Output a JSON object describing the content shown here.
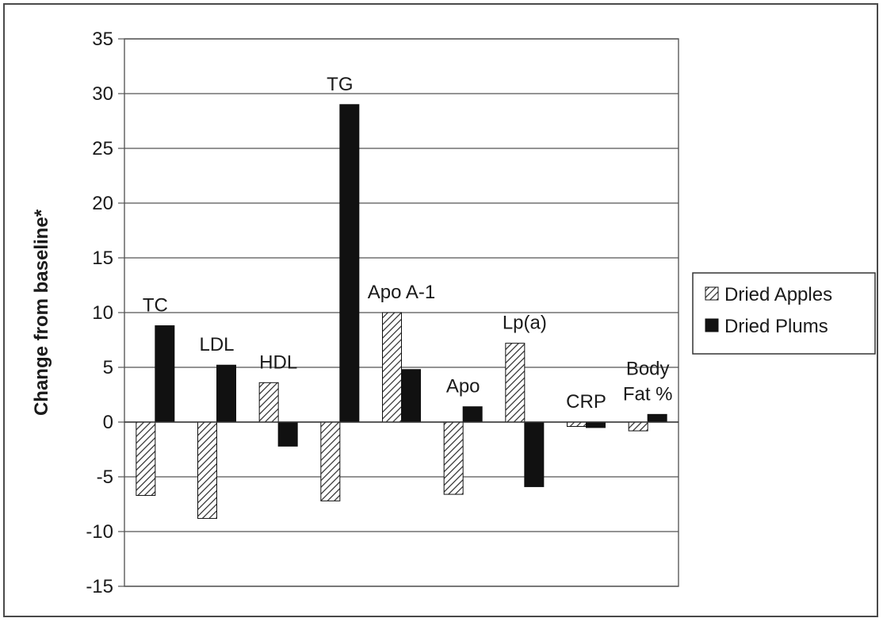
{
  "chart_data": {
    "type": "bar",
    "ylabel": "Change from baseline*",
    "xlabel": "",
    "ylim": [
      -15,
      35
    ],
    "yticks": [
      -15,
      -10,
      -5,
      0,
      5,
      10,
      15,
      20,
      25,
      30,
      35
    ],
    "grid": true,
    "legend_position": "right",
    "categories": [
      {
        "lines": [
          "TC"
        ]
      },
      {
        "lines": [
          "LDL"
        ]
      },
      {
        "lines": [
          "HDL"
        ]
      },
      {
        "lines": [
          "TG"
        ]
      },
      {
        "lines": [
          "Apo A-1"
        ]
      },
      {
        "lines": [
          "Apo"
        ]
      },
      {
        "lines": [
          "Lp(a)"
        ]
      },
      {
        "lines": [
          "CRP"
        ]
      },
      {
        "lines": [
          "Body",
          "Fat %"
        ]
      }
    ],
    "series": [
      {
        "name": "Dried Apples",
        "pattern": "hatched",
        "color": "#ffffff",
        "values": [
          -6.7,
          -8.8,
          3.6,
          -7.2,
          10.0,
          -6.6,
          7.2,
          -0.4,
          -0.8
        ]
      },
      {
        "name": "Dried Plums",
        "pattern": "solid",
        "color": "#111111",
        "values": [
          8.8,
          5.2,
          -2.2,
          29.0,
          4.8,
          1.4,
          -5.9,
          -0.5,
          0.7
        ]
      }
    ]
  }
}
